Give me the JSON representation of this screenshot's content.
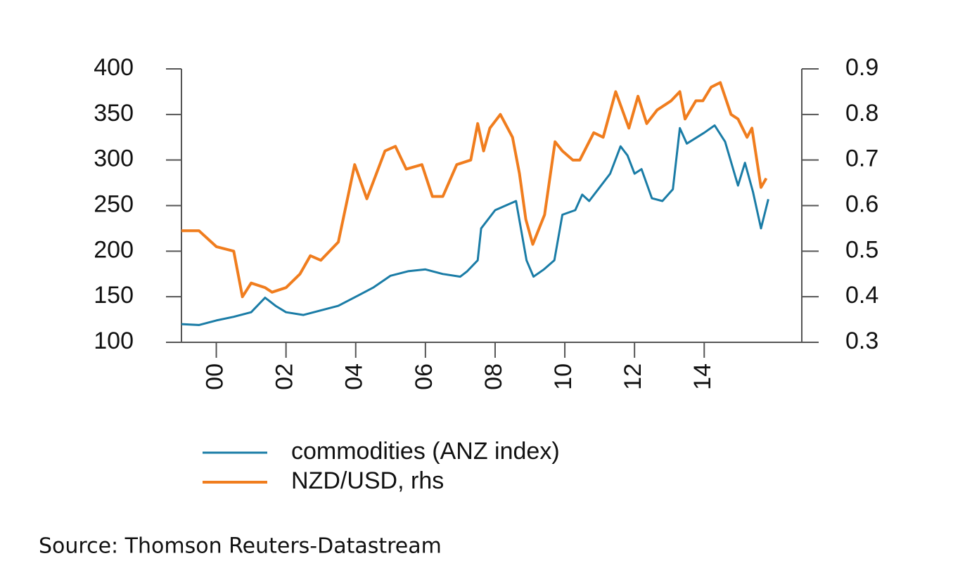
{
  "chart_data": {
    "type": "line",
    "source": "Source: Thomson Reuters-Datastream",
    "xlim": [
      -1,
      16.8
    ],
    "xticks": [
      {
        "value": 0,
        "label": "00"
      },
      {
        "value": 2,
        "label": "02"
      },
      {
        "value": 4,
        "label": "04"
      },
      {
        "value": 6,
        "label": "06"
      },
      {
        "value": 8,
        "label": "08"
      },
      10,
      12,
      14
    ],
    "ylim": [
      100,
      400
    ],
    "yticks": [
      100,
      150,
      200,
      250,
      300,
      350,
      400
    ],
    "y2lim": [
      0.3,
      0.9
    ],
    "y2ticks": [
      0.3,
      0.4,
      0.5,
      0.6,
      0.7,
      0.8,
      0.9
    ],
    "legend": "bottom-left",
    "series": [
      {
        "name": "commodities (ANZ index)",
        "color": "#1a7ca6",
        "x": [
          -1,
          -0.5,
          0,
          0.5,
          1,
          1.4,
          1.7,
          2,
          2.5,
          3,
          3.5,
          4,
          4.5,
          5,
          5.5,
          6,
          6.5,
          7,
          7.2,
          7.5,
          7.6,
          8,
          8.3,
          8.6,
          8.9,
          9.1,
          9.4,
          9.7,
          9.93,
          10.3,
          10.5,
          10.7,
          11,
          11.3,
          11.6,
          11.8,
          12,
          12.2,
          12.5,
          12.8,
          13.1,
          13.3,
          13.5,
          14,
          14.3,
          14.6,
          14.97,
          15.17,
          15.4,
          15.63,
          15.84
        ],
        "values": [
          120,
          119,
          124,
          128,
          133,
          149,
          140,
          133,
          130,
          135,
          140,
          150,
          160,
          173,
          178,
          180,
          175,
          172,
          178,
          190,
          225,
          245,
          250,
          255,
          190,
          172,
          180,
          190,
          240,
          245,
          262,
          255,
          270,
          285,
          315,
          305,
          285,
          290,
          258,
          255,
          268,
          335,
          318,
          330,
          338,
          320,
          272,
          297,
          265,
          225,
          257
        ]
      },
      {
        "name": "NZD/USD, rhs",
        "color": "#f07d1e",
        "axis": "y2",
        "x": [
          -1,
          -0.5,
          0,
          0.5,
          0.75,
          1,
          1.4,
          1.6,
          2,
          2.4,
          2.7,
          3,
          3.5,
          3.97,
          4.32,
          4.84,
          5.14,
          5.45,
          5.9,
          6.2,
          6.5,
          6.9,
          7.3,
          7.5,
          7.67,
          7.85,
          8.15,
          8.5,
          8.7,
          8.88,
          9.08,
          9.42,
          9.72,
          9.93,
          10.23,
          10.43,
          10.83,
          11.1,
          11.46,
          11.84,
          12.1,
          12.35,
          12.65,
          13.05,
          13.3,
          13.45,
          13.76,
          13.96,
          14.2,
          14.46,
          14.77,
          14.97,
          15.23,
          15.37,
          15.63,
          15.78
        ],
        "values": [
          0.545,
          0.545,
          0.51,
          0.5,
          0.4,
          0.43,
          0.42,
          0.41,
          0.42,
          0.45,
          0.49,
          0.48,
          0.52,
          0.69,
          0.615,
          0.72,
          0.73,
          0.68,
          0.69,
          0.62,
          0.62,
          0.69,
          0.7,
          0.78,
          0.72,
          0.77,
          0.8,
          0.75,
          0.67,
          0.57,
          0.515,
          0.58,
          0.74,
          0.72,
          0.7,
          0.7,
          0.76,
          0.75,
          0.85,
          0.77,
          0.84,
          0.78,
          0.81,
          0.83,
          0.85,
          0.79,
          0.83,
          0.83,
          0.86,
          0.87,
          0.8,
          0.79,
          0.75,
          0.77,
          0.64,
          0.66
        ]
      }
    ]
  }
}
